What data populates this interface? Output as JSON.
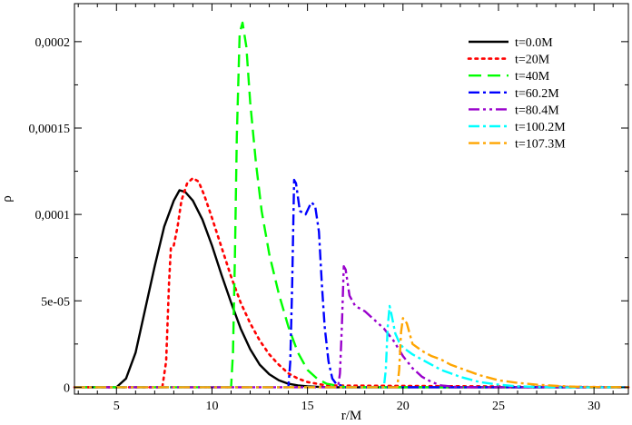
{
  "chart_data": {
    "type": "line",
    "xlabel": "r/M",
    "ylabel": "ρ",
    "xlim": [
      2.8,
      31.8
    ],
    "ylim": [
      -4e-06,
      0.000222
    ],
    "x_ticks": [
      {
        "value": 5,
        "label": "5"
      },
      {
        "value": 10,
        "label": "10"
      },
      {
        "value": 15,
        "label": "15"
      },
      {
        "value": 20,
        "label": "20"
      },
      {
        "value": 25,
        "label": "25"
      },
      {
        "value": 30,
        "label": "30"
      }
    ],
    "y_ticks": [
      {
        "value": 0,
        "label": "0"
      },
      {
        "value": 5e-05,
        "label": "5e-05"
      },
      {
        "value": 0.0001,
        "label": "0,0001"
      },
      {
        "value": 0.00015,
        "label": "0,00015"
      },
      {
        "value": 0.0002,
        "label": "0,0002"
      }
    ],
    "grid": false,
    "legend_position": "top-right",
    "series": [
      {
        "name": "t=0.0M",
        "color": "#000000",
        "dash": "solid",
        "x": [
          2.8,
          5.0,
          5.5,
          6.0,
          6.5,
          7.0,
          7.5,
          8.0,
          8.3,
          8.6,
          9.0,
          9.5,
          10.0,
          10.5,
          11.0,
          11.5,
          12.0,
          12.5,
          13.0,
          13.5,
          14.0,
          14.5,
          15.0,
          16.0,
          31.8
        ],
        "y": [
          0,
          0,
          5e-06,
          2e-05,
          4.5e-05,
          7e-05,
          9.3e-05,
          0.000108,
          0.000114,
          0.000113,
          0.000108,
          9.7e-05,
          8.2e-05,
          6.5e-05,
          4.9e-05,
          3.4e-05,
          2.2e-05,
          1.3e-05,
          7.5e-06,
          4e-06,
          2e-06,
          1e-06,
          5e-07,
          0,
          0
        ]
      },
      {
        "name": "t=20M",
        "color": "#ff0000",
        "dash": "dot",
        "x": [
          2.8,
          7.4,
          7.6,
          7.75,
          7.85,
          8.0,
          8.2,
          8.4,
          8.7,
          9.0,
          9.3,
          9.6,
          10.0,
          10.5,
          11.0,
          11.5,
          12.0,
          12.5,
          13.0,
          13.5,
          14.0,
          14.5,
          15.0,
          16.0,
          31.8
        ],
        "y": [
          0,
          0,
          1.5e-05,
          6e-05,
          8.1e-05,
          8.2e-05,
          9.3e-05,
          0.000108,
          0.000118,
          0.000121,
          0.000119,
          0.000111,
          9.8e-05,
          8.1e-05,
          6.4e-05,
          4.9e-05,
          3.7e-05,
          2.7e-05,
          1.9e-05,
          1.3e-05,
          8e-06,
          5e-06,
          3e-06,
          1e-06,
          0
        ]
      },
      {
        "name": "t=40M",
        "color": "#00ff00",
        "dash": "dash",
        "x": [
          2.8,
          11.0,
          11.1,
          11.2,
          11.3,
          11.45,
          11.6,
          11.8,
          12.0,
          12.3,
          12.6,
          13.0,
          13.5,
          14.0,
          14.5,
          15.0,
          15.5,
          16.0,
          17.0,
          31.8
        ],
        "y": [
          0,
          0,
          2e-05,
          7.5e-05,
          0.000145,
          0.000205,
          0.000211,
          0.000197,
          0.000165,
          0.00013,
          0.000102,
          7.7e-05,
          5.4e-05,
          3.5e-05,
          2e-05,
          1e-05,
          5e-06,
          2e-06,
          0,
          0
        ]
      },
      {
        "name": "t=60.2M",
        "color": "#0000ff",
        "dash": "dashdot",
        "x": [
          2.8,
          14.0,
          14.1,
          14.2,
          14.3,
          14.4,
          14.6,
          14.9,
          15.2,
          15.4,
          15.6,
          15.75,
          15.9,
          16.1,
          16.3,
          16.5,
          17.0,
          31.8
        ],
        "y": [
          0,
          0,
          1.5e-05,
          6e-05,
          0.00012,
          0.000118,
          0.000102,
          0.0001,
          0.000107,
          0.000105,
          9e-05,
          6e-05,
          3.5e-05,
          1.5e-05,
          5e-06,
          2e-06,
          0,
          0
        ]
      },
      {
        "name": "t=80.4M",
        "color": "#9900cc",
        "dash": "dashdotdot",
        "x": [
          2.8,
          16.6,
          16.7,
          16.8,
          16.9,
          17.0,
          17.2,
          17.5,
          18.0,
          18.5,
          19.0,
          19.5,
          20.0,
          20.5,
          21.0,
          21.5,
          22.0,
          23.0,
          31.8
        ],
        "y": [
          0,
          0,
          8e-06,
          3.5e-05,
          7e-05,
          6.8e-05,
          5.3e-05,
          4.7e-05,
          4.4e-05,
          3.9e-05,
          3.4e-05,
          2.7e-05,
          1.8e-05,
          1.1e-05,
          6e-06,
          3e-06,
          1e-06,
          0,
          0
        ]
      },
      {
        "name": "t=100.2M",
        "color": "#00ffff",
        "dash": "dashdot",
        "x": [
          2.8,
          19.0,
          19.1,
          19.2,
          19.3,
          19.4,
          19.6,
          19.8,
          20.0,
          20.5,
          21.0,
          21.5,
          22.0,
          22.5,
          23.0,
          23.5,
          24.0,
          25.0,
          26.0,
          27.0,
          28.0,
          31.8
        ],
        "y": [
          0,
          0,
          1e-05,
          3.5e-05,
          4.7e-05,
          4.2e-05,
          3.1e-05,
          2.6e-05,
          2.3e-05,
          1.9e-05,
          1.6e-05,
          1.3e-05,
          1e-05,
          8e-06,
          6e-06,
          4.5e-06,
          3e-06,
          1.5e-06,
          5e-07,
          2e-07,
          0,
          0
        ]
      },
      {
        "name": "t=107.3M",
        "color": "#ffa500",
        "dash": "dashdot",
        "x": [
          2.8,
          19.7,
          19.8,
          19.9,
          20.0,
          20.2,
          20.5,
          21.0,
          21.5,
          22.0,
          22.5,
          23.0,
          23.5,
          24.0,
          24.5,
          25.0,
          26.0,
          27.0,
          28.0,
          29.0,
          30.0,
          31.8
        ],
        "y": [
          0,
          0,
          1e-05,
          3.2e-05,
          4e-05,
          3.7e-05,
          2.5e-05,
          2.1e-05,
          1.8e-05,
          1.6e-05,
          1.3e-05,
          1.1e-05,
          9e-06,
          7e-06,
          5.5e-06,
          4e-06,
          2.5e-06,
          1.5e-06,
          8e-07,
          3e-07,
          1e-07,
          0
        ]
      }
    ]
  }
}
